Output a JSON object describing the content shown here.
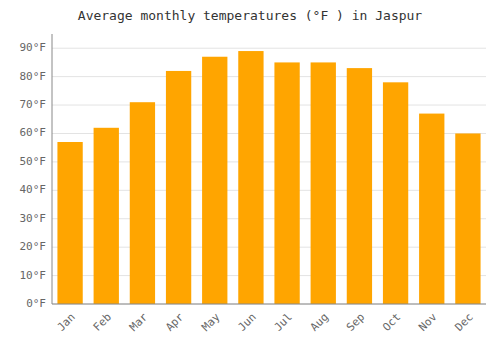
{
  "chart_data": {
    "type": "bar",
    "title": "Average monthly temperatures (°F ) in Jaspur",
    "categories": [
      "Jan",
      "Feb",
      "Mar",
      "Apr",
      "May",
      "Jun",
      "Jul",
      "Aug",
      "Sep",
      "Oct",
      "Nov",
      "Dec"
    ],
    "values": [
      57,
      62,
      71,
      82,
      87,
      89,
      85,
      85,
      83,
      78,
      67,
      60
    ],
    "color": "#FFA500",
    "ylim": [
      0,
      95
    ],
    "yticks": [
      {
        "value": 0,
        "label": "0°F"
      },
      {
        "value": 10,
        "label": "10°F"
      },
      {
        "value": 20,
        "label": "20°F"
      },
      {
        "value": 30,
        "label": "30°F"
      },
      {
        "value": 40,
        "label": "40°F"
      },
      {
        "value": 50,
        "label": "50°F"
      },
      {
        "value": 60,
        "label": "60°F"
      },
      {
        "value": 70,
        "label": "70°F"
      },
      {
        "value": 80,
        "label": "80°F"
      },
      {
        "value": 90,
        "label": "90°F"
      }
    ],
    "grid": true
  }
}
